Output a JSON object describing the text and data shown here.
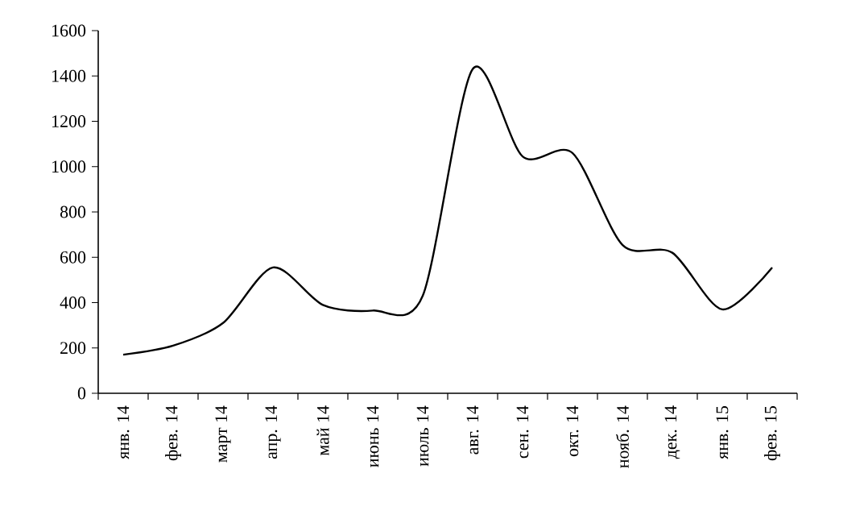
{
  "chart_data": {
    "type": "line",
    "categories": [
      "янв. 14",
      "фев. 14",
      "март 14",
      "апр. 14",
      "май 14",
      "июнь 14",
      "июль 14",
      "авг. 14",
      "сен. 14",
      "окт. 14",
      "нояб. 14",
      "дек. 14",
      "янв. 15",
      "фев. 15"
    ],
    "values": [
      170,
      210,
      310,
      555,
      390,
      365,
      430,
      1430,
      1045,
      1060,
      655,
      620,
      370,
      555
    ],
    "color": "#000000",
    "ylim": [
      0,
      1600
    ],
    "yticks": [
      0,
      200,
      400,
      600,
      800,
      1000,
      1200,
      1400,
      1600
    ],
    "grid": false,
    "marker": "none",
    "line_style": "solid"
  }
}
